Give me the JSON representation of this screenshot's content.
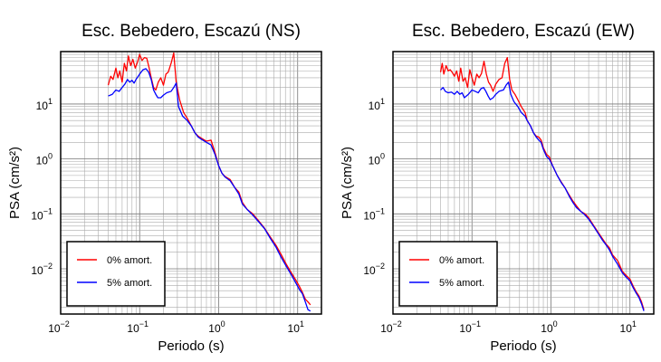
{
  "chart_data": [
    {
      "type": "line",
      "title": "Esc. Bebedero, Escazú (NS)",
      "xlabel": "Periodo (s)",
      "ylabel": "PSA (cm/s²)",
      "x_scale": "log",
      "y_scale": "log",
      "xlim": [
        0.01,
        20
      ],
      "ylim": [
        0.0015,
        90
      ],
      "x_ticks": [
        {
          "value": 0.01,
          "base": "10",
          "exp": "−2"
        },
        {
          "value": 0.1,
          "base": "10",
          "exp": "−1"
        },
        {
          "value": 1,
          "base": "10",
          "exp": "0"
        },
        {
          "value": 10,
          "base": "10",
          "exp": "1"
        }
      ],
      "y_ticks": [
        {
          "value": 0.01,
          "base": "10",
          "exp": "−2"
        },
        {
          "value": 0.1,
          "base": "10",
          "exp": "−1"
        },
        {
          "value": 1,
          "base": "10",
          "exp": "0"
        },
        {
          "value": 10,
          "base": "10",
          "exp": "1"
        }
      ],
      "grid": true,
      "legend_position": "bottom-left",
      "series": [
        {
          "name": "0% amort.",
          "color": "#ff0000",
          "points": [
            [
              0.04,
              22
            ],
            [
              0.043,
              32
            ],
            [
              0.046,
              28
            ],
            [
              0.05,
              45
            ],
            [
              0.053,
              30
            ],
            [
              0.056,
              40
            ],
            [
              0.06,
              25
            ],
            [
              0.064,
              55
            ],
            [
              0.068,
              40
            ],
            [
              0.072,
              75
            ],
            [
              0.077,
              50
            ],
            [
              0.082,
              65
            ],
            [
              0.088,
              45
            ],
            [
              0.094,
              58
            ],
            [
              0.1,
              80
            ],
            [
              0.107,
              62
            ],
            [
              0.115,
              70
            ],
            [
              0.123,
              68
            ],
            [
              0.132,
              45
            ],
            [
              0.14,
              30
            ],
            [
              0.15,
              20
            ],
            [
              0.16,
              18
            ],
            [
              0.172,
              25
            ],
            [
              0.185,
              30
            ],
            [
              0.2,
              22
            ],
            [
              0.215,
              35
            ],
            [
              0.23,
              38
            ],
            [
              0.25,
              55
            ],
            [
              0.27,
              85
            ],
            [
              0.29,
              25
            ],
            [
              0.32,
              12
            ],
            [
              0.36,
              7
            ],
            [
              0.4,
              5.5
            ],
            [
              0.45,
              4
            ],
            [
              0.5,
              3
            ],
            [
              0.55,
              2.6
            ],
            [
              0.6,
              2.4
            ],
            [
              0.7,
              2.1
            ],
            [
              0.8,
              2.2
            ],
            [
              0.9,
              1.3
            ],
            [
              1.0,
              0.75
            ],
            [
              1.1,
              0.55
            ],
            [
              1.2,
              0.48
            ],
            [
              1.4,
              0.42
            ],
            [
              1.6,
              0.3
            ],
            [
              1.8,
              0.25
            ],
            [
              2.0,
              0.16
            ],
            [
              2.3,
              0.12
            ],
            [
              2.7,
              0.1
            ],
            [
              3.2,
              0.075
            ],
            [
              3.8,
              0.055
            ],
            [
              4.5,
              0.038
            ],
            [
              5.3,
              0.027
            ],
            [
              6.2,
              0.018
            ],
            [
              7.2,
              0.012
            ],
            [
              8.3,
              0.0085
            ],
            [
              9.5,
              0.0062
            ],
            [
              10.5,
              0.0048
            ],
            [
              11.5,
              0.0037
            ],
            [
              12.5,
              0.0028
            ],
            [
              13.5,
              0.0025
            ],
            [
              14.5,
              0.0022
            ]
          ]
        },
        {
          "name": "5% amort.",
          "color": "#0000ff",
          "points": [
            [
              0.04,
              14
            ],
            [
              0.045,
              15
            ],
            [
              0.05,
              18
            ],
            [
              0.055,
              17
            ],
            [
              0.06,
              20
            ],
            [
              0.065,
              23
            ],
            [
              0.07,
              28
            ],
            [
              0.075,
              25
            ],
            [
              0.08,
              27
            ],
            [
              0.085,
              24
            ],
            [
              0.09,
              28
            ],
            [
              0.1,
              35
            ],
            [
              0.11,
              42
            ],
            [
              0.12,
              44
            ],
            [
              0.13,
              38
            ],
            [
              0.14,
              28
            ],
            [
              0.15,
              18
            ],
            [
              0.16,
              15
            ],
            [
              0.17,
              13
            ],
            [
              0.185,
              13
            ],
            [
              0.2,
              14.5
            ],
            [
              0.22,
              16
            ],
            [
              0.25,
              17
            ],
            [
              0.27,
              20
            ],
            [
              0.29,
              24
            ],
            [
              0.31,
              9
            ],
            [
              0.35,
              6
            ],
            [
              0.4,
              5
            ],
            [
              0.45,
              4
            ],
            [
              0.5,
              3
            ],
            [
              0.55,
              2.5
            ],
            [
              0.6,
              2.3
            ],
            [
              0.7,
              2.0
            ],
            [
              0.8,
              1.8
            ],
            [
              0.9,
              1.2
            ],
            [
              1.0,
              0.75
            ],
            [
              1.1,
              0.55
            ],
            [
              1.2,
              0.47
            ],
            [
              1.4,
              0.4
            ],
            [
              1.6,
              0.3
            ],
            [
              1.8,
              0.23
            ],
            [
              2.0,
              0.15
            ],
            [
              2.3,
              0.12
            ],
            [
              2.7,
              0.095
            ],
            [
              3.2,
              0.072
            ],
            [
              3.8,
              0.054
            ],
            [
              4.5,
              0.036
            ],
            [
              5.3,
              0.025
            ],
            [
              6.2,
              0.016
            ],
            [
              7.2,
              0.011
            ],
            [
              8.3,
              0.0078
            ],
            [
              9.5,
              0.0055
            ],
            [
              10.5,
              0.0042
            ],
            [
              11.5,
              0.0035
            ],
            [
              12.5,
              0.0025
            ],
            [
              13.5,
              0.0018
            ],
            [
              14.5,
              0.0017
            ]
          ]
        }
      ]
    },
    {
      "type": "line",
      "title": "Esc. Bebedero, Escazú (EW)",
      "xlabel": "Periodo (s)",
      "ylabel": "PSA (cm/s²)",
      "x_scale": "log",
      "y_scale": "log",
      "xlim": [
        0.01,
        20
      ],
      "ylim": [
        0.0015,
        90
      ],
      "x_ticks": [
        {
          "value": 0.01,
          "base": "10",
          "exp": "−2"
        },
        {
          "value": 0.1,
          "base": "10",
          "exp": "−1"
        },
        {
          "value": 1,
          "base": "10",
          "exp": "0"
        },
        {
          "value": 10,
          "base": "10",
          "exp": "1"
        }
      ],
      "y_ticks": [
        {
          "value": 0.01,
          "base": "10",
          "exp": "−2"
        },
        {
          "value": 0.1,
          "base": "10",
          "exp": "−1"
        },
        {
          "value": 1,
          "base": "10",
          "exp": "0"
        },
        {
          "value": 10,
          "base": "10",
          "exp": "1"
        }
      ],
      "grid": true,
      "legend_position": "bottom-left",
      "series": [
        {
          "name": "0% amort.",
          "color": "#ff0000",
          "points": [
            [
              0.04,
              38
            ],
            [
              0.042,
              55
            ],
            [
              0.044,
              35
            ],
            [
              0.047,
              50
            ],
            [
              0.05,
              40
            ],
            [
              0.053,
              42
            ],
            [
              0.056,
              38
            ],
            [
              0.06,
              32
            ],
            [
              0.064,
              40
            ],
            [
              0.068,
              26
            ],
            [
              0.072,
              45
            ],
            [
              0.077,
              26
            ],
            [
              0.082,
              30
            ],
            [
              0.088,
              20
            ],
            [
              0.094,
              42
            ],
            [
              0.1,
              30
            ],
            [
              0.107,
              22
            ],
            [
              0.115,
              35
            ],
            [
              0.123,
              30
            ],
            [
              0.132,
              36
            ],
            [
              0.142,
              60
            ],
            [
              0.152,
              35
            ],
            [
              0.162,
              25
            ],
            [
              0.172,
              22
            ],
            [
              0.185,
              17
            ],
            [
              0.2,
              23
            ],
            [
              0.22,
              28
            ],
            [
              0.24,
              30
            ],
            [
              0.26,
              55
            ],
            [
              0.28,
              70
            ],
            [
              0.3,
              28
            ],
            [
              0.32,
              18
            ],
            [
              0.35,
              15
            ],
            [
              0.38,
              12
            ],
            [
              0.42,
              9
            ],
            [
              0.47,
              7
            ],
            [
              0.5,
              5
            ],
            [
              0.55,
              4
            ],
            [
              0.6,
              3
            ],
            [
              0.65,
              2.6
            ],
            [
              0.7,
              2.5
            ],
            [
              0.75,
              2.2
            ],
            [
              0.8,
              1.6
            ],
            [
              0.88,
              1.2
            ],
            [
              0.95,
              1.1
            ],
            [
              1.05,
              0.75
            ],
            [
              1.2,
              0.5
            ],
            [
              1.35,
              0.38
            ],
            [
              1.5,
              0.3
            ],
            [
              1.7,
              0.22
            ],
            [
              1.9,
              0.17
            ],
            [
              2.1,
              0.14
            ],
            [
              2.4,
              0.11
            ],
            [
              2.7,
              0.1
            ],
            [
              3.0,
              0.085
            ],
            [
              3.5,
              0.06
            ],
            [
              4.0,
              0.045
            ],
            [
              4.5,
              0.035
            ],
            [
              5.0,
              0.028
            ],
            [
              5.5,
              0.024
            ],
            [
              6.0,
              0.018
            ],
            [
              7.0,
              0.014
            ],
            [
              8.0,
              0.009
            ],
            [
              9.0,
              0.0075
            ],
            [
              10.0,
              0.0065
            ],
            [
              11.0,
              0.0048
            ],
            [
              12.0,
              0.0038
            ],
            [
              13.0,
              0.0032
            ],
            [
              14.0,
              0.0025
            ],
            [
              15.0,
              0.0018
            ]
          ]
        },
        {
          "name": "5% amort.",
          "color": "#0000ff",
          "points": [
            [
              0.04,
              18
            ],
            [
              0.043,
              20
            ],
            [
              0.046,
              17
            ],
            [
              0.05,
              16
            ],
            [
              0.055,
              16.5
            ],
            [
              0.06,
              15
            ],
            [
              0.065,
              17
            ],
            [
              0.07,
              15
            ],
            [
              0.075,
              16
            ],
            [
              0.08,
              13
            ],
            [
              0.09,
              15
            ],
            [
              0.1,
              18
            ],
            [
              0.11,
              17
            ],
            [
              0.12,
              16
            ],
            [
              0.13,
              19
            ],
            [
              0.14,
              20
            ],
            [
              0.15,
              17
            ],
            [
              0.16,
              14
            ],
            [
              0.17,
              12
            ],
            [
              0.185,
              13
            ],
            [
              0.2,
              15
            ],
            [
              0.22,
              17
            ],
            [
              0.25,
              18
            ],
            [
              0.27,
              22
            ],
            [
              0.29,
              25
            ],
            [
              0.31,
              15
            ],
            [
              0.34,
              11
            ],
            [
              0.38,
              9
            ],
            [
              0.42,
              7
            ],
            [
              0.47,
              6
            ],
            [
              0.5,
              5
            ],
            [
              0.55,
              4
            ],
            [
              0.6,
              3
            ],
            [
              0.65,
              2.5
            ],
            [
              0.7,
              2.2
            ],
            [
              0.75,
              2
            ],
            [
              0.8,
              1.5
            ],
            [
              0.88,
              1.1
            ],
            [
              0.95,
              1
            ],
            [
              1.05,
              0.75
            ],
            [
              1.2,
              0.5
            ],
            [
              1.35,
              0.37
            ],
            [
              1.5,
              0.3
            ],
            [
              1.7,
              0.21
            ],
            [
              1.9,
              0.16
            ],
            [
              2.1,
              0.13
            ],
            [
              2.4,
              0.11
            ],
            [
              2.7,
              0.095
            ],
            [
              3.0,
              0.08
            ],
            [
              3.5,
              0.058
            ],
            [
              4.0,
              0.043
            ],
            [
              4.5,
              0.033
            ],
            [
              5.0,
              0.027
            ],
            [
              5.5,
              0.022
            ],
            [
              6.0,
              0.017
            ],
            [
              7.0,
              0.012
            ],
            [
              8.0,
              0.0085
            ],
            [
              9.0,
              0.007
            ],
            [
              10.0,
              0.006
            ],
            [
              11.0,
              0.0045
            ],
            [
              12.0,
              0.0036
            ],
            [
              13.0,
              0.003
            ],
            [
              14.0,
              0.0023
            ],
            [
              15.0,
              0.0017
            ]
          ]
        }
      ]
    }
  ]
}
